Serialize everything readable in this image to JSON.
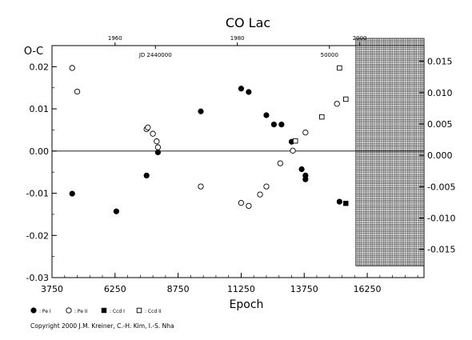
{
  "chart_data": {
    "type": "scatter",
    "title": "CO Lac",
    "ylabel": "O-C",
    "xlabel": "Epoch",
    "xlim": [
      3750,
      18500
    ],
    "ylim": [
      -0.03,
      0.025
    ],
    "right_ylim": [
      -0.0195,
      0.0175
    ],
    "x_ticks": [
      "3750",
      "6250",
      "8750",
      "11250",
      "13750",
      "16250"
    ],
    "x_tick_values": [
      3750,
      6250,
      8750,
      11250,
      13750,
      16250
    ],
    "y_ticks": [
      "0.02",
      "0.01",
      "0.00",
      "-0.01",
      "-0.02",
      "-0.03"
    ],
    "y_tick_values": [
      0.02,
      0.01,
      0.0,
      -0.01,
      -0.02,
      -0.03
    ],
    "right_y_ticks": [
      "0.015",
      "0.010",
      "0.005",
      "0.000",
      "-0.005",
      "-0.010",
      "-0.015"
    ],
    "right_y_tick_values": [
      0.015,
      0.01,
      0.005,
      0.0,
      -0.005,
      -0.01,
      -0.015
    ],
    "top_year_ticks": [
      "1960",
      "1980",
      "2000"
    ],
    "top_year_epochs": [
      6250,
      11100,
      15950
    ],
    "jd_labels": [
      {
        "text": "JD 2440000",
        "epoch": 7850
      },
      {
        "text": "50000",
        "epoch": 14750
      }
    ],
    "grid": false,
    "future_hatch_start": 15800,
    "legend_position": "bottom-left",
    "series": [
      {
        "name": "Pe I",
        "marker": "filled-circle",
        "x": [
          4550,
          6300,
          7500,
          7950,
          9650,
          11250,
          11550,
          12250,
          12550,
          12850,
          13250,
          13650,
          13800,
          13800,
          15150
        ],
        "y": [
          -0.0101,
          -0.0143,
          -0.0058,
          -0.0003,
          0.0094,
          0.0148,
          0.014,
          0.0085,
          0.0063,
          0.0063,
          0.0022,
          -0.0043,
          -0.0058,
          -0.0067,
          -0.012
        ]
      },
      {
        "name": "Pe II",
        "marker": "open-circle",
        "x": [
          4550,
          4750,
          7500,
          7550,
          7750,
          7900,
          7950,
          9650,
          11250,
          11550,
          12000,
          12250,
          12800,
          13300,
          13800,
          15050
        ],
        "y": [
          0.0197,
          0.0141,
          0.0052,
          0.0056,
          0.0041,
          0.0023,
          0.0009,
          -0.0084,
          -0.0123,
          -0.013,
          -0.0103,
          -0.0084,
          -0.0029,
          0.0001,
          0.0044,
          0.0112
        ]
      },
      {
        "name": "Ccd I",
        "marker": "filled-square",
        "x": [
          15400
        ],
        "y": [
          -0.0124
        ]
      },
      {
        "name": "Ccd II",
        "marker": "open-square",
        "x": [
          13400,
          14450,
          15150,
          15400
        ],
        "y": [
          0.0024,
          0.0081,
          0.0197,
          0.0123
        ]
      }
    ]
  },
  "copyright": "Copyright 2000 J.M. Kreiner, C.-H. Kim, I.-S. Nha"
}
